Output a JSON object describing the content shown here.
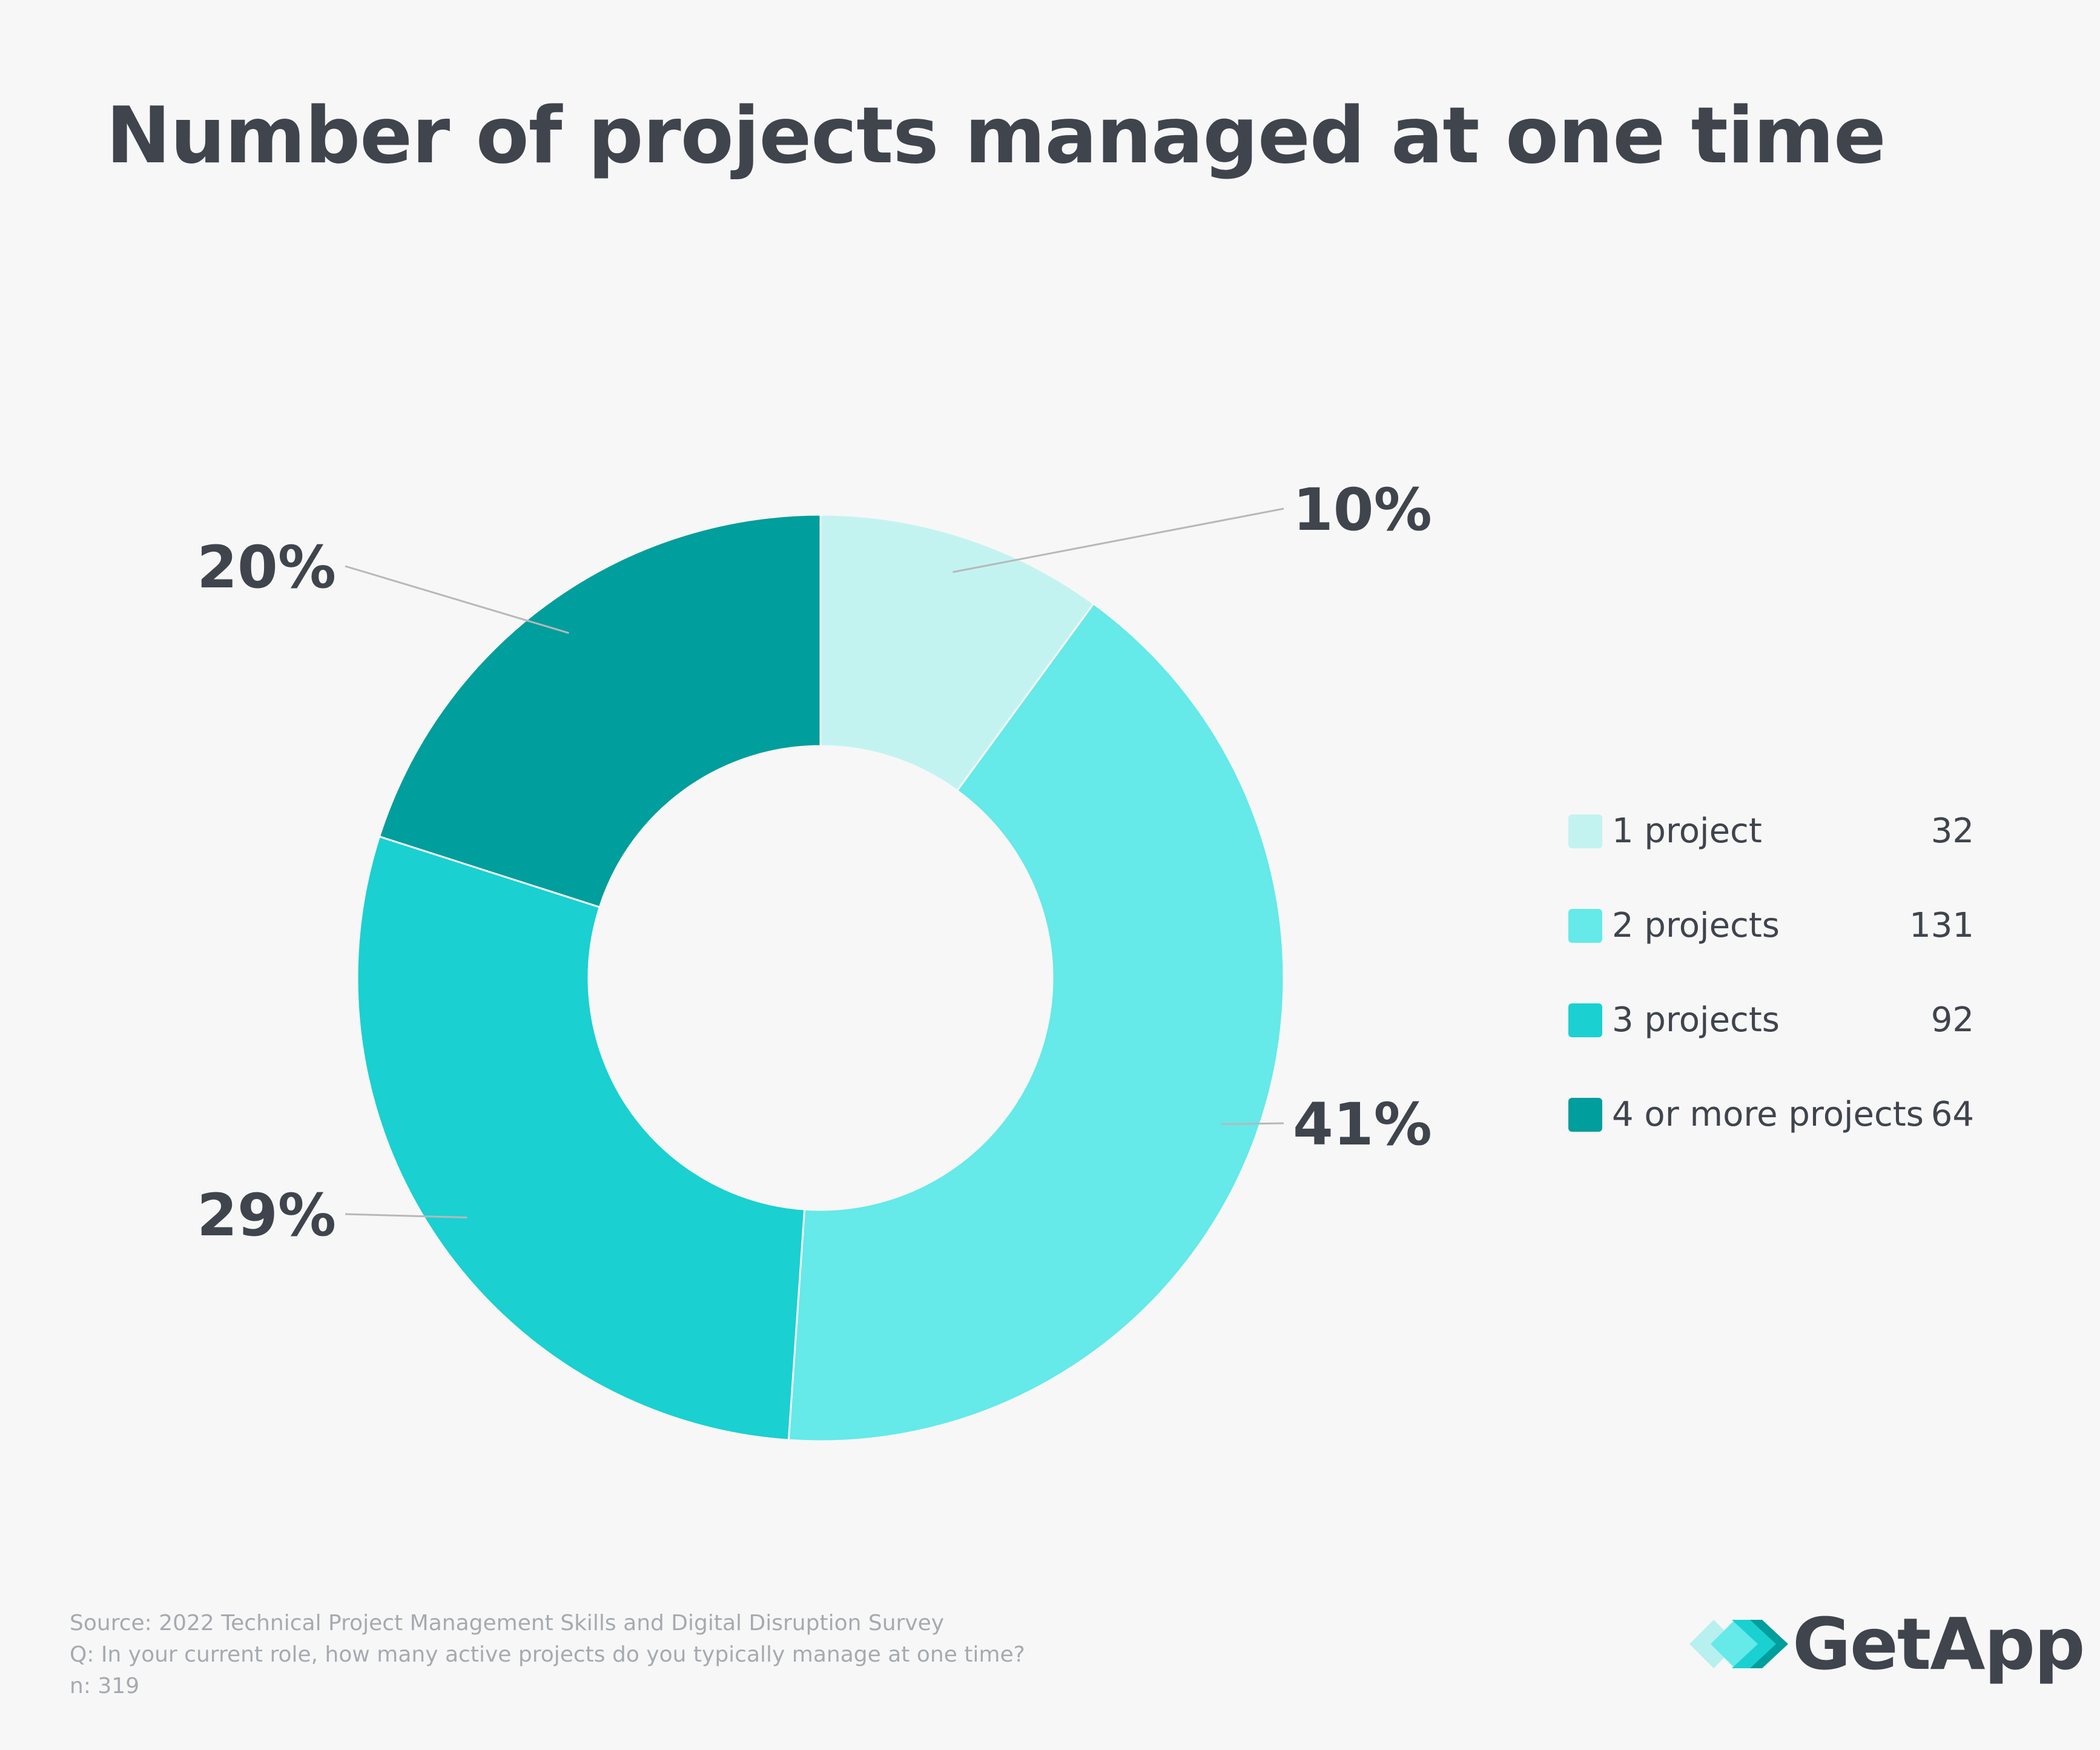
{
  "title": "Number of projects managed at one time",
  "chart_data": {
    "type": "pie",
    "variant": "donut",
    "title": "Number of projects managed at one time",
    "categories": [
      "1 project",
      "2 projects",
      "3 projects",
      "4 or more projects"
    ],
    "values": [
      32,
      131,
      92,
      64
    ],
    "percent_labels": [
      "10%",
      "41%",
      "29%",
      "20%"
    ],
    "colors": [
      "#c3f3f1",
      "#65e9e9",
      "#1ad0d1",
      "#009e9c"
    ],
    "legend_position": "right"
  },
  "legend": [
    {
      "label": "1 project",
      "count": "32",
      "color": "#c3f3f1"
    },
    {
      "label": "2 projects",
      "count": "131",
      "color": "#65e9e9"
    },
    {
      "label": "3 projects",
      "count": "92",
      "color": "#1ad0d1"
    },
    {
      "label": "4 or more projects",
      "count": "64",
      "color": "#009e9c"
    }
  ],
  "footer": {
    "source": "Source: 2022 Technical Project Management Skills and Digital Disruption Survey",
    "question": "Q: In your current role, how many active projects do you typically manage at one time?",
    "n": "n: 319"
  },
  "logo": {
    "text": "GetApp"
  }
}
